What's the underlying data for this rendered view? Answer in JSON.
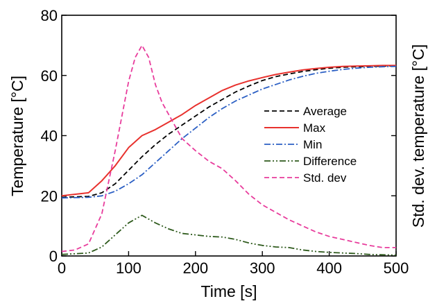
{
  "chart_data": {
    "type": "line",
    "xlabel": "Time [s]",
    "ylabel": "Temperature [°C]",
    "ylabel_right": "Std. dev. temperature [°C]",
    "xlim": [
      0,
      500
    ],
    "ylim": [
      0,
      80
    ],
    "x_ticks": [
      "0",
      "100",
      "200",
      "300",
      "400",
      "500"
    ],
    "y_ticks": [
      "0",
      "20",
      "40",
      "60",
      "80"
    ],
    "grid": false,
    "legend_position": "right",
    "series": [
      {
        "name": "Average",
        "color": "#000000",
        "dash": "dashed",
        "x": [
          0,
          40,
          60,
          80,
          100,
          120,
          140,
          160,
          180,
          200,
          220,
          240,
          260,
          280,
          300,
          320,
          340,
          360,
          380,
          400,
          420,
          440,
          460,
          480,
          500
        ],
        "y": [
          19.5,
          19.8,
          21,
          24,
          28.5,
          33,
          37,
          40.5,
          43.5,
          46.5,
          49.5,
          52,
          54.5,
          56.5,
          58.3,
          59.6,
          60.5,
          61.3,
          61.9,
          62.4,
          62.7,
          62.9,
          63,
          63.1,
          63.2
        ]
      },
      {
        "name": "Max",
        "color": "#e8312d",
        "dash": "solid",
        "x": [
          0,
          40,
          60,
          80,
          100,
          120,
          140,
          160,
          180,
          200,
          220,
          240,
          260,
          280,
          300,
          320,
          340,
          360,
          380,
          400,
          420,
          440,
          460,
          480,
          500
        ],
        "y": [
          20,
          21,
          25,
          30,
          36,
          40,
          42,
          44.5,
          47,
          50,
          52.5,
          55,
          56.8,
          58.2,
          59.3,
          60.3,
          61.1,
          61.8,
          62.3,
          62.7,
          63,
          63.1,
          63.2,
          63.3,
          63.3
        ]
      },
      {
        "name": "Min",
        "color": "#2b5fc4",
        "dash": "dashdot",
        "x": [
          0,
          40,
          60,
          80,
          100,
          120,
          140,
          160,
          180,
          200,
          220,
          240,
          260,
          280,
          300,
          320,
          340,
          360,
          380,
          400,
          420,
          440,
          460,
          480,
          500
        ],
        "y": [
          19.3,
          19.5,
          20,
          21.5,
          24,
          27,
          31,
          35,
          39,
          42.5,
          46,
          49,
          51.5,
          53.5,
          55.5,
          57,
          58.5,
          59.7,
          60.7,
          61.4,
          62,
          62.4,
          62.7,
          62.9,
          63
        ]
      },
      {
        "name": "Difference",
        "color": "#2e5a1c",
        "dash": "dashdotdot",
        "x": [
          0,
          40,
          60,
          80,
          100,
          120,
          140,
          160,
          180,
          200,
          220,
          240,
          260,
          280,
          300,
          320,
          340,
          360,
          380,
          400,
          420,
          440,
          460,
          480,
          500
        ],
        "y": [
          0.5,
          1,
          3,
          7,
          11,
          13.5,
          11,
          9,
          7.5,
          7,
          6.5,
          6.3,
          5.5,
          4.3,
          3.5,
          3,
          2.8,
          2,
          1.5,
          1.2,
          1,
          0.8,
          0.5,
          0.4,
          0.3
        ]
      },
      {
        "name": "Std. dev",
        "color": "#e83c9c",
        "dash": "dashed",
        "x": [
          0,
          20,
          40,
          60,
          80,
          100,
          110,
          120,
          130,
          140,
          150,
          160,
          180,
          200,
          220,
          240,
          260,
          280,
          300,
          320,
          340,
          360,
          380,
          400,
          420,
          440,
          460,
          480,
          500
        ],
        "y": [
          1.5,
          2,
          4,
          14,
          35,
          58,
          66,
          70,
          66,
          57,
          51,
          47,
          39,
          35,
          31.5,
          29,
          25,
          20.5,
          17,
          14.5,
          12,
          10,
          8,
          6.5,
          5.5,
          4.5,
          3.5,
          2.8,
          2.8
        ]
      }
    ]
  }
}
